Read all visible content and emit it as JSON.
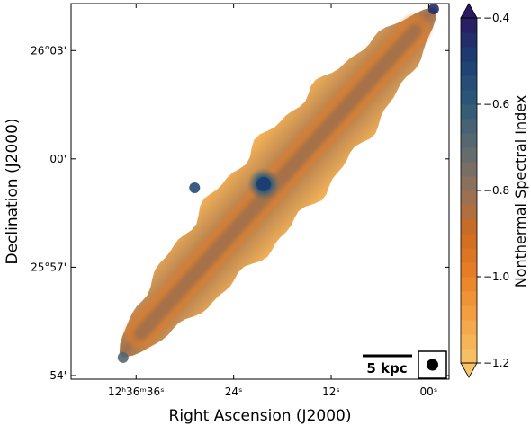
{
  "chart_data": {
    "type": "heatmap",
    "xlabel": "Right Ascension (J2000)",
    "ylabel": "Declination (J2000)",
    "x_ticks": [
      {
        "label": "12ʰ36ᵐ36ˢ",
        "ra_sec": 36
      },
      {
        "label": "24ˢ",
        "ra_sec": 24
      },
      {
        "label": "12ˢ",
        "ra_sec": 12
      },
      {
        "label": "00ˢ",
        "ra_sec": 0
      }
    ],
    "y_ticks": [
      {
        "label": "26°03'",
        "dec_arcmin": 1563
      },
      {
        "label": "00'",
        "dec_arcmin": 1560
      },
      {
        "label": "25°57'",
        "dec_arcmin": 1557
      },
      {
        "label": "54'",
        "dec_arcmin": 1554
      }
    ],
    "xlim_ra_sec": [
      44.0,
      -2.5
    ],
    "ylim_dec_arcmin": [
      1553.9,
      1564.3
    ],
    "colorbar": {
      "label": "Nonthermal Spectral Index",
      "min": -1.2,
      "max": -0.4,
      "ticks": [
        "−0.4",
        "−0.6",
        "−0.8",
        "−1.0",
        "−1.2"
      ],
      "extend": "both",
      "colors": [
        "#f8c46a",
        "#f4a446",
        "#ea8128",
        "#d06a1e",
        "#93725a",
        "#5d6a6e",
        "#2e5a78",
        "#1c3f72",
        "#2a1a60"
      ]
    },
    "scalebar_label": "5 kpc",
    "beam_marker": "filled-circle",
    "galaxy": {
      "major_axis_start": {
        "ra_sec": 37.8,
        "dec_arcmin": 1554.55
      },
      "major_axis_end": {
        "ra_sec": -0.8,
        "dec_arcmin": 1564.15
      },
      "ridge_spectral_index": -0.82,
      "edge_spectral_index": -1.15,
      "core": {
        "ra_sec": 20.3,
        "dec_arcmin": 1559.3,
        "spectral_index": -0.5
      },
      "tip_features": [
        {
          "ra_sec": -0.6,
          "dec_arcmin": 1564.15,
          "spectral_index": -0.45
        },
        {
          "ra_sec": 37.6,
          "dec_arcmin": 1554.5,
          "spectral_index": -0.68
        },
        {
          "ra_sec": 28.8,
          "dec_arcmin": 1559.2,
          "spectral_index": -0.55
        }
      ]
    }
  }
}
